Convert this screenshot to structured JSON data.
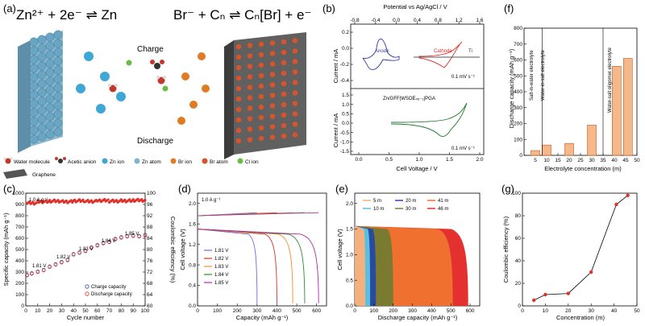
{
  "panel_labels": [
    "(a)",
    "(b)",
    "(c)",
    "(d)",
    "(e)",
    "(f)",
    "(g)"
  ],
  "panel_a": {
    "eq_left": "Zn²⁺ + 2e⁻ ⇌ Zn",
    "eq_right": "Br⁻ + Cₙ ⇌ Cₙ[Br] + e⁻",
    "charge": "Charge",
    "discharge": "Discharge",
    "legend": [
      {
        "label": "Water molecule",
        "color": "#c0392b"
      },
      {
        "label": "Acetic anion",
        "color": "#333333"
      },
      {
        "label": "Zn ion",
        "color": "#3fa7d6"
      },
      {
        "label": "Zn atom",
        "color": "#7fb3cf"
      },
      {
        "label": "Br ion",
        "color": "#e07b24"
      },
      {
        "label": "Br atom",
        "color": "#d9542b"
      },
      {
        "label": "Cl ion",
        "color": "#6dbb45"
      },
      {
        "label": "Graphene",
        "color": "#555555"
      }
    ]
  },
  "chart_data": [
    {
      "panel": "b",
      "type": "line",
      "top_xlabel": "Potential vs Ag/AgCl / V",
      "top_xticks": [
        "-0.8",
        "-0.4",
        "0.0",
        "0.4",
        "0.8",
        "1.2",
        "1.6"
      ],
      "xlabel": "Cell Voltage / V",
      "xticks": [
        "0.0",
        "0.5",
        "1.0",
        "1.5",
        "2.0"
      ],
      "top_ylabel": "Current / mA",
      "top_yticks": [
        "0.2",
        "0.0",
        "-0.2",
        "-0.4"
      ],
      "bottom_ylabel": "Current / mA",
      "bottom_yticks": [
        "1.5",
        "1.0",
        "0.5",
        "0.0",
        "-0.5",
        "-1.0",
        "-1.5"
      ],
      "annotations": [
        "Anode",
        "Cathode",
        "Ti",
        "0.1 mV s⁻¹",
        "Zn/GFF|WSOE₄₅₋₁|PGA",
        "0.1 mV s⁻¹"
      ],
      "series": [
        {
          "name": "Anode",
          "color": "#3040a0"
        },
        {
          "name": "Cathode",
          "color": "#e0302a"
        },
        {
          "name": "Ti",
          "color": "#555555"
        },
        {
          "name": "Zn/GFF|WSOE₄₅₋₁|PGA",
          "color": "#1e7a2e"
        }
      ]
    },
    {
      "panel": "c",
      "type": "scatter",
      "xlabel": "Cycle number",
      "ylabel": "Specific capacity (mAh g⁻¹)",
      "y2label": "Coulombic efficiency (%)",
      "xlim": [
        0,
        100
      ],
      "ylim": [
        0,
        1000
      ],
      "y2lim": [
        60,
        100
      ],
      "xticks": [
        "0",
        "10",
        "20",
        "30",
        "40",
        "50",
        "60",
        "70",
        "80",
        "90",
        "100"
      ],
      "yticks": [
        "0",
        "100",
        "200",
        "300",
        "400",
        "500",
        "600",
        "700",
        "800",
        "900",
        "1000"
      ],
      "y2ticks": [
        "60",
        "64",
        "68",
        "72",
        "76",
        "80",
        "84",
        "88",
        "92",
        "96",
        "100"
      ],
      "annotations": [
        "1.0 A g⁻¹",
        "1.81 V",
        "1.82 V",
        "1.83 V",
        "1.84 V",
        "1.85 V"
      ],
      "series": [
        {
          "name": "Charge capacity",
          "color": "#3a4aa0",
          "x": [
            1,
            5,
            10,
            15,
            20,
            25,
            30,
            35,
            40,
            45,
            50,
            55,
            60,
            65,
            70,
            75,
            80,
            85,
            90,
            95,
            100
          ],
          "values": [
            275,
            290,
            305,
            320,
            350,
            370,
            390,
            410,
            460,
            475,
            490,
            520,
            540,
            560,
            570,
            595,
            610,
            620,
            625,
            620,
            630
          ]
        },
        {
          "name": "Discharge capacity",
          "color": "#e0302a",
          "x": [
            1,
            5,
            10,
            15,
            20,
            25,
            30,
            35,
            40,
            45,
            50,
            55,
            60,
            65,
            70,
            75,
            80,
            85,
            90,
            95,
            100
          ],
          "values": [
            270,
            285,
            300,
            315,
            345,
            365,
            385,
            405,
            455,
            470,
            485,
            515,
            535,
            555,
            565,
            590,
            605,
            615,
            620,
            615,
            625
          ]
        },
        {
          "name": "Coulombic efficiency",
          "color": "#e0302a",
          "x": [
            1,
            10,
            20,
            30,
            40,
            50,
            60,
            70,
            80,
            90,
            100
          ],
          "values": [
            96.5,
            97,
            97.2,
            97,
            97.3,
            97.1,
            97.4,
            97.2,
            97.3,
            97.5,
            97.4
          ]
        }
      ]
    },
    {
      "panel": "d",
      "type": "line",
      "xlabel": "Capacity (mAh g⁻¹)",
      "ylabel": "Cell voltage (V)",
      "xlim": [
        0,
        650
      ],
      "ylim": [
        0,
        2.2
      ],
      "xticks": [
        "0",
        "100",
        "200",
        "300",
        "400",
        "500",
        "600"
      ],
      "yticks": [
        "0.0",
        "0.4",
        "0.8",
        "1.2",
        "1.6",
        "2.0"
      ],
      "annotations": [
        "1.0 A g⁻¹"
      ],
      "series": [
        {
          "name": "1.81 V",
          "color": "#6a6fd0",
          "capacity": 300
        },
        {
          "name": "1.82 V",
          "color": "#e0302a",
          "capacity": 400
        },
        {
          "name": "1.83 V",
          "color": "#f0902a",
          "capacity": 480
        },
        {
          "name": "1.84 V",
          "color": "#2e8a3a",
          "capacity": 540
        },
        {
          "name": "1.85 V",
          "color": "#b02aa0",
          "capacity": 610
        }
      ]
    },
    {
      "panel": "e",
      "type": "area",
      "xlabel": "Discharge capacity (mAh g⁻¹)",
      "ylabel": "Cell voltage (V)",
      "xlim": [
        0,
        650
      ],
      "ylim": [
        0,
        2.2
      ],
      "xticks": [
        "0",
        "100",
        "200",
        "300",
        "400",
        "500",
        "600"
      ],
      "yticks": [
        "0.0",
        "0.5",
        "1.0",
        "1.5",
        "2.0"
      ],
      "series": [
        {
          "name": "46 m",
          "color": "#e53030",
          "capacity": 590
        },
        {
          "name": "41 m",
          "color": "#f07030",
          "capacity": 510
        },
        {
          "name": "30 m",
          "color": "#7a7a30",
          "capacity": 200
        },
        {
          "name": "20 m",
          "color": "#2a4aa0",
          "capacity": 110
        },
        {
          "name": "10 m",
          "color": "#5ac0e0",
          "capacity": 80
        },
        {
          "name": "5 m",
          "color": "#f5b080",
          "capacity": 55
        }
      ],
      "legend_order": [
        "5 m",
        "20 m",
        "41 m",
        "10 m",
        "30 m",
        "46 m"
      ]
    },
    {
      "panel": "f",
      "type": "bar",
      "xlabel": "Electrolyte concentration (m)",
      "ylabel": "Discharge capacity (mAh g⁻¹)",
      "xlim": [
        0,
        50
      ],
      "ylim": [
        0,
        800
      ],
      "xticks": [
        "5",
        "10",
        "15",
        "20",
        "25",
        "30",
        "35",
        "40",
        "45",
        "50"
      ],
      "yticks": [
        "0",
        "100",
        "200",
        "300",
        "400",
        "500",
        "600",
        "700",
        "800"
      ],
      "x": [
        5,
        10,
        20,
        30,
        41,
        46
      ],
      "values": [
        30,
        65,
        75,
        190,
        560,
        610
      ],
      "color": "#f5b88a",
      "annotations": [
        "Salt-in-water electrolyte",
        "Water-in-salt electrolyte",
        "Water-salt oligomer electrolyte"
      ]
    },
    {
      "panel": "g",
      "type": "line",
      "xlabel": "Concentration (m)",
      "ylabel": "Coulombic efficiency (%)",
      "xlim": [
        0,
        50
      ],
      "ylim": [
        0,
        100
      ],
      "xticks": [
        "0",
        "10",
        "20",
        "30",
        "40",
        "50"
      ],
      "yticks": [
        "0",
        "20",
        "40",
        "60",
        "80",
        "100"
      ],
      "x": [
        5,
        10,
        20,
        30,
        41,
        46
      ],
      "values": [
        5,
        10,
        11,
        30,
        90,
        98
      ],
      "color": "#e0302a"
    }
  ]
}
